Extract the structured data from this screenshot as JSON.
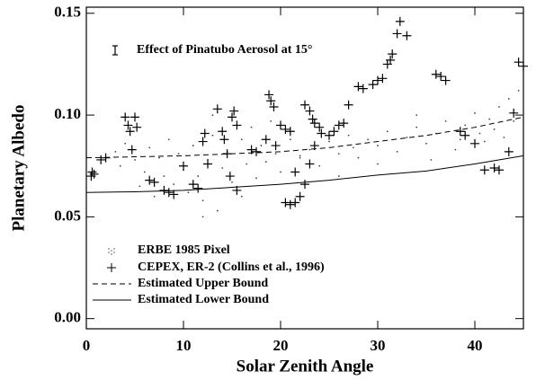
{
  "chart_data": {
    "type": "scatter",
    "xlabel": "Solar Zenith Angle",
    "ylabel": "Planetary Albedo",
    "annotation": "Effect of Pinatubo Aerosol at 15°",
    "xlim": [
      0,
      45
    ],
    "ylim": [
      -0.005,
      0.153
    ],
    "xticks": [
      0,
      10,
      20,
      30,
      40
    ],
    "yticks": [
      {
        "value": 0,
        "label": "0.00"
      },
      0.05,
      {
        "value": 0.1,
        "label": "0.10"
      },
      0.15
    ],
    "series": [
      {
        "name": "ERBE 1985 Pixel",
        "mark": "dot",
        "color": "#444444",
        "x": [
          3,
          3.5,
          4,
          5,
          5.5,
          6,
          6.5,
          7,
          7.5,
          8,
          8.5,
          9,
          9.5,
          10,
          10.5,
          11,
          11.5,
          12,
          12.5,
          13,
          13.5,
          14,
          14.5,
          15,
          16,
          16.5,
          17,
          17.5,
          18,
          18.5,
          19,
          19.5,
          20,
          21,
          22,
          23,
          24,
          25,
          26,
          27,
          27.5,
          28,
          29,
          30,
          31,
          32,
          33,
          34,
          35,
          35.5,
          36,
          37,
          38,
          38.5,
          39,
          40,
          40.5,
          41,
          41.5,
          42,
          42.5,
          43,
          43.5,
          44,
          44.5,
          45,
          12,
          13,
          16,
          22,
          26,
          30,
          34
        ],
        "y": [
          0.082,
          0.075,
          0.086,
          0.078,
          0.065,
          0.072,
          0.084,
          0.06,
          0.079,
          0.07,
          0.088,
          0.066,
          0.081,
          0.073,
          0.062,
          0.085,
          0.07,
          0.058,
          0.078,
          0.09,
          0.053,
          0.074,
          0.082,
          0.067,
          0.088,
          0.076,
          0.094,
          0.069,
          0.085,
          0.077,
          0.097,
          0.081,
          0.072,
          0.088,
          0.079,
          0.083,
          0.075,
          0.087,
          0.081,
          0.09,
          0.084,
          0.079,
          0.088,
          0.085,
          0.092,
          0.082,
          0.089,
          0.094,
          0.086,
          0.078,
          0.091,
          0.097,
          0.083,
          0.088,
          0.095,
          0.101,
          0.091,
          0.087,
          0.098,
          0.093,
          0.104,
          0.089,
          0.108,
          0.097,
          0.112,
          0.1,
          0.05,
          0.1,
          0.06,
          0.08,
          0.07,
          0.076,
          0.1
        ]
      },
      {
        "name": "CEPEX, ER-2 (Collins et al., 1996)",
        "mark": "cross",
        "color": "#000000",
        "x": [
          0.5,
          0.6,
          0.8,
          1.5,
          2,
          4,
          4.3,
          4.5,
          4.7,
          5,
          5.2,
          6.5,
          7,
          8,
          8.5,
          9,
          10,
          11,
          11.5,
          12,
          12.2,
          12.5,
          13.5,
          14,
          14.2,
          14.5,
          15,
          15.2,
          15.5,
          14.8,
          15.5,
          17,
          17.5,
          18.5,
          18.8,
          19,
          19.3,
          19.5,
          20,
          20.5,
          21,
          21.5,
          20.5,
          21,
          21.5,
          22,
          22.5,
          23,
          23.5,
          24,
          22.5,
          23,
          23.3,
          23.5,
          24.2,
          25,
          25.5,
          26,
          26.5,
          27,
          28,
          28.5,
          29.5,
          30,
          30.5,
          31,
          31.3,
          31.5,
          32,
          32.3,
          33,
          36,
          36.5,
          37,
          38.5,
          39,
          40,
          41,
          42,
          42.5,
          43.5,
          44,
          44.5,
          45
        ],
        "y": [
          0.07,
          0.072,
          0.071,
          0.078,
          0.079,
          0.099,
          0.095,
          0.092,
          0.083,
          0.099,
          0.094,
          0.068,
          0.067,
          0.063,
          0.062,
          0.061,
          0.075,
          0.066,
          0.064,
          0.087,
          0.091,
          0.076,
          0.103,
          0.092,
          0.088,
          0.081,
          0.099,
          0.102,
          0.095,
          0.07,
          0.063,
          0.083,
          0.082,
          0.088,
          0.11,
          0.107,
          0.104,
          0.085,
          0.095,
          0.093,
          0.092,
          0.072,
          0.057,
          0.056,
          0.057,
          0.06,
          0.066,
          0.076,
          0.085,
          0.094,
          0.105,
          0.102,
          0.098,
          0.096,
          0.091,
          0.09,
          0.092,
          0.095,
          0.096,
          0.105,
          0.114,
          0.113,
          0.115,
          0.117,
          0.118,
          0.125,
          0.127,
          0.13,
          0.14,
          0.146,
          0.139,
          0.12,
          0.119,
          0.117,
          0.092,
          0.09,
          0.086,
          0.073,
          0.074,
          0.073,
          0.082,
          0.101,
          0.126,
          0.124
        ]
      },
      {
        "name": "Estimated Upper Bound",
        "mark": "dashed",
        "color": "#000000",
        "x": [
          0,
          5,
          10,
          15,
          20,
          25,
          30,
          35,
          40,
          45
        ],
        "y": [
          0.079,
          0.0795,
          0.08,
          0.081,
          0.082,
          0.084,
          0.087,
          0.09,
          0.094,
          0.099
        ]
      },
      {
        "name": "Estimated Lower Bound",
        "mark": "solid",
        "color": "#000000",
        "x": [
          0,
          5,
          10,
          15,
          20,
          25,
          30,
          35,
          40,
          45
        ],
        "y": [
          0.062,
          0.0623,
          0.063,
          0.0645,
          0.066,
          0.068,
          0.0705,
          0.0725,
          0.076,
          0.08
        ]
      }
    ]
  }
}
